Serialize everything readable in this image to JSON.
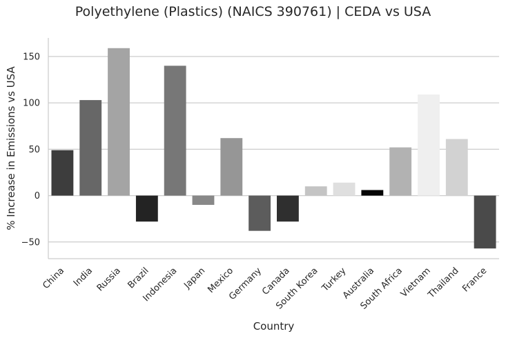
{
  "chart_data": {
    "type": "bar",
    "title": "Polyethylene (Plastics) (NAICS 390761) | CEDA vs USA",
    "xlabel": "Country",
    "ylabel": "% Increase in Emissions vs USA",
    "ylim": [
      -68,
      170
    ],
    "yticks": [
      -50,
      0,
      50,
      100,
      150
    ],
    "ytick_labels": [
      "−50",
      "0",
      "50",
      "100",
      "150"
    ],
    "grid": "horizontal",
    "categories": [
      "China",
      "India",
      "Russia",
      "Brazil",
      "Indonesia",
      "Japan",
      "Mexico",
      "Germany",
      "Canada",
      "South Korea",
      "Turkey",
      "Australia",
      "South Africa",
      "Vietnam",
      "Thailand",
      "France"
    ],
    "values": [
      49,
      103,
      159,
      -28,
      140,
      -10,
      62,
      -38,
      -28,
      10,
      14,
      6,
      52,
      109,
      61,
      -57
    ],
    "colors": [
      "#3d3d3d",
      "#676767",
      "#a4a4a4",
      "#232323",
      "#777777",
      "#888888",
      "#969696",
      "#5c5c5c",
      "#2f2f2f",
      "#c4c4c4",
      "#dfdfdf",
      "#050505",
      "#b2b2b2",
      "#efefef",
      "#d2d2d2",
      "#4a4a4a"
    ]
  }
}
